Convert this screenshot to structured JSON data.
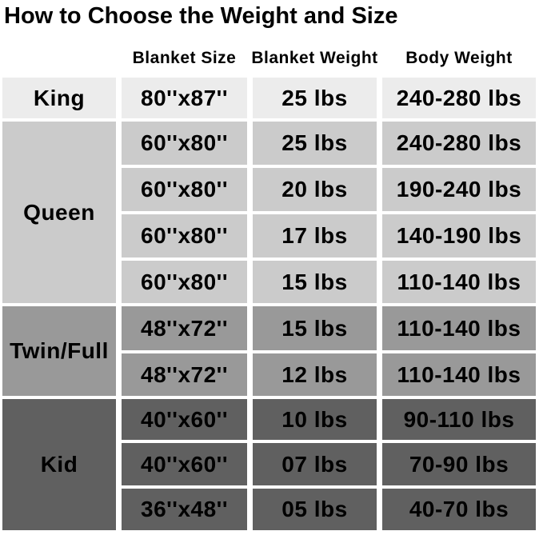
{
  "title": "How to Choose the Weight and Size",
  "colors": {
    "page_bg": "#ffffff",
    "text": "#000000",
    "row_king_bg": "#ececec",
    "row_queen_bg": "#cbcbcb",
    "row_twin_full_bg": "#999999",
    "row_kid_bg": "#606060",
    "gutter": "#ffffff"
  },
  "chart_data": {
    "type": "table",
    "title": "How to Choose the Weight and Size",
    "columns": [
      "",
      "Blanket Size",
      "Blanket Weight",
      "Body Weight"
    ],
    "rows": [
      [
        "King",
        "80''x87''",
        "25 lbs",
        "240-280 lbs"
      ],
      [
        "Queen",
        "60''x80''",
        "25 lbs",
        "240-280 lbs"
      ],
      [
        "Queen",
        "60''x80''",
        "20 lbs",
        "190-240 lbs"
      ],
      [
        "Queen",
        "60''x80''",
        "17 lbs",
        "140-190 lbs"
      ],
      [
        "Queen",
        "60''x80''",
        "15 lbs",
        "110-140 lbs"
      ],
      [
        "Twin/Full",
        "48''x72''",
        "15 lbs",
        "110-140 lbs"
      ],
      [
        "Twin/Full",
        "48''x72''",
        "12 lbs",
        "110-140 lbs"
      ],
      [
        "Kid",
        "40''x60''",
        "10 lbs",
        "90-110 lbs"
      ],
      [
        "Kid",
        "40''x60''",
        "07 lbs",
        "70-90 lbs"
      ],
      [
        "Kid",
        "36''x48''",
        "05 lbs",
        "40-70 lbs"
      ]
    ],
    "row_groups": [
      {
        "label": "King",
        "row_span": 1
      },
      {
        "label": "Queen",
        "row_span": 4
      },
      {
        "label": "Twin/Full",
        "row_span": 2
      },
      {
        "label": "Kid",
        "row_span": 3
      }
    ],
    "legend_position": "none",
    "grid": false
  }
}
